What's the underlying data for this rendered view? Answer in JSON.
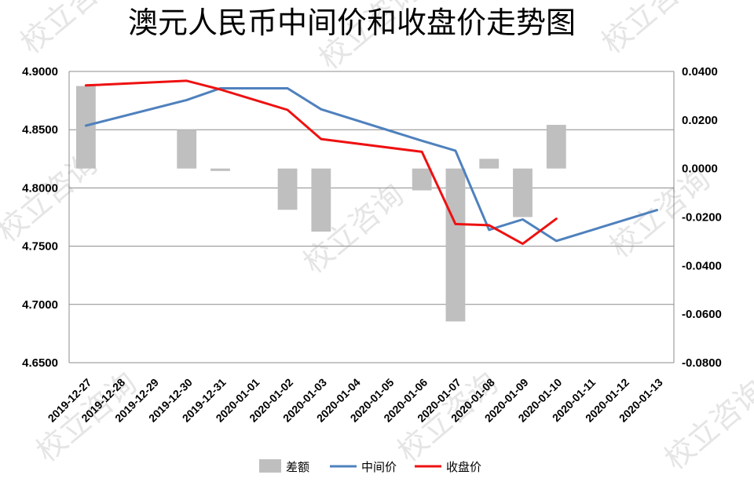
{
  "chart_data": {
    "type": "line",
    "title": "澳元人民币中间价和收盘价走势图",
    "categories": [
      "2019-12-27",
      "2019-12-28",
      "2019-12-29",
      "2019-12-30",
      "2019-12-31",
      "2020-01-01",
      "2020-01-02",
      "2020-01-03",
      "2020-01-04",
      "2020-01-05",
      "2020-01-06",
      "2020-01-07",
      "2020-01-08",
      "2020-01-09",
      "2020-01-10",
      "2020-01-11",
      "2020-01-12",
      "2020-01-13"
    ],
    "left_axis": {
      "ylim": [
        4.65,
        4.9
      ],
      "ticks": [
        "4.9000",
        "4.8500",
        "4.8000",
        "4.7500",
        "4.7000",
        "4.6500"
      ]
    },
    "right_axis": {
      "ylim": [
        -0.08,
        0.04
      ],
      "ticks": [
        "0.0400",
        "0.0200",
        "0.0000",
        "-0.0200",
        "-0.0400",
        "-0.0600",
        "-0.0800"
      ]
    },
    "grid": true,
    "legend_position": "bottom",
    "series": [
      {
        "name": "差额",
        "type": "bar",
        "axis": "right",
        "color": "#bfbfbf",
        "values": [
          0.034,
          null,
          null,
          0.016,
          -0.001,
          null,
          -0.017,
          -0.026,
          null,
          null,
          -0.009,
          -0.063,
          0.004,
          -0.02,
          0.018,
          null,
          null,
          null
        ]
      },
      {
        "name": "中间价",
        "type": "line",
        "axis": "left",
        "color": "#4f81bd",
        "values": [
          4.8535,
          null,
          null,
          4.8755,
          4.8855,
          null,
          4.8855,
          4.8675,
          null,
          null,
          4.8405,
          4.832,
          4.764,
          4.773,
          4.7545,
          null,
          null,
          4.781
        ]
      },
      {
        "name": "收盘价",
        "type": "line",
        "axis": "left",
        "color": "#ee1111",
        "values": [
          4.888,
          null,
          null,
          4.892,
          4.8845,
          null,
          4.867,
          4.842,
          null,
          null,
          4.831,
          4.769,
          4.768,
          4.752,
          4.7735,
          null,
          null,
          null
        ]
      }
    ]
  },
  "watermark": {
    "text": "校立咨询"
  }
}
